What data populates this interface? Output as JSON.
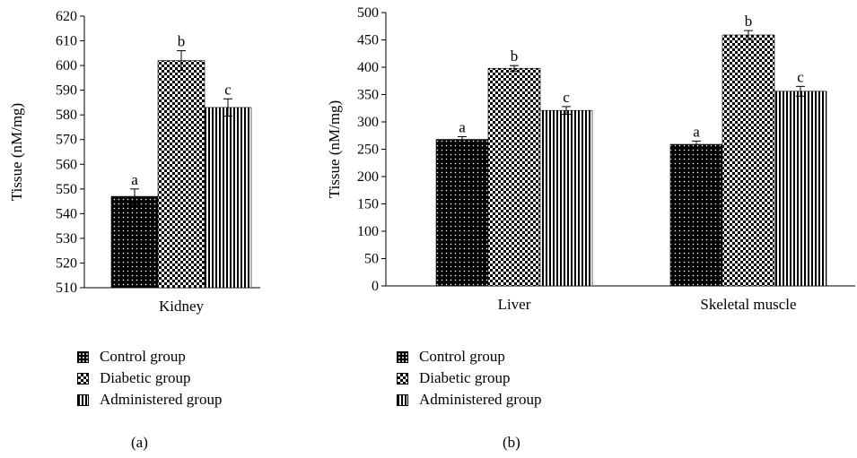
{
  "colors": {
    "ink": "#000000",
    "background": "#ffffff"
  },
  "legend": {
    "items": [
      {
        "label": "Control group",
        "pattern": "dots"
      },
      {
        "label": "Diabetic group",
        "pattern": "checker"
      },
      {
        "label": "Administered group",
        "pattern": "vertical-stripes"
      }
    ]
  },
  "captions": {
    "a": "(a)",
    "b": "(b)"
  },
  "chart_data": [
    {
      "type": "bar",
      "title": "",
      "xlabel": "",
      "ylabel": "Tissue (nM/mg)",
      "ylim": [
        510,
        620
      ],
      "yticks": [
        510,
        520,
        530,
        540,
        550,
        560,
        570,
        580,
        590,
        600,
        610,
        620
      ],
      "categories": [
        "Kidney"
      ],
      "series": [
        {
          "name": "Control group",
          "values": [
            547
          ],
          "errors": [
            3
          ],
          "sig_letters": [
            "a"
          ]
        },
        {
          "name": "Diabetic group",
          "values": [
            602
          ],
          "errors": [
            4
          ],
          "sig_letters": [
            "b"
          ]
        },
        {
          "name": "Administered group",
          "values": [
            583
          ],
          "errors": [
            3.5
          ],
          "sig_letters": [
            "c"
          ]
        }
      ],
      "grid": false,
      "legend_position": "bottom"
    },
    {
      "type": "bar",
      "title": "",
      "xlabel": "",
      "ylabel": "Tissue (nM/mg)",
      "ylim": [
        0,
        500
      ],
      "yticks": [
        0,
        50,
        100,
        150,
        200,
        250,
        300,
        350,
        400,
        450,
        500
      ],
      "categories": [
        "Liver",
        "Skeletal muscle"
      ],
      "series": [
        {
          "name": "Control group",
          "values": [
            268,
            259
          ],
          "errors": [
            5,
            6
          ],
          "sig_letters": [
            "a",
            "a"
          ]
        },
        {
          "name": "Diabetic group",
          "values": [
            398,
            459
          ],
          "errors": [
            5,
            8
          ],
          "sig_letters": [
            "b",
            "b"
          ]
        },
        {
          "name": "Administered group",
          "values": [
            321,
            356
          ],
          "errors": [
            7,
            9
          ],
          "sig_letters": [
            "c",
            "c"
          ]
        }
      ],
      "grid": false,
      "legend_position": "bottom"
    }
  ]
}
